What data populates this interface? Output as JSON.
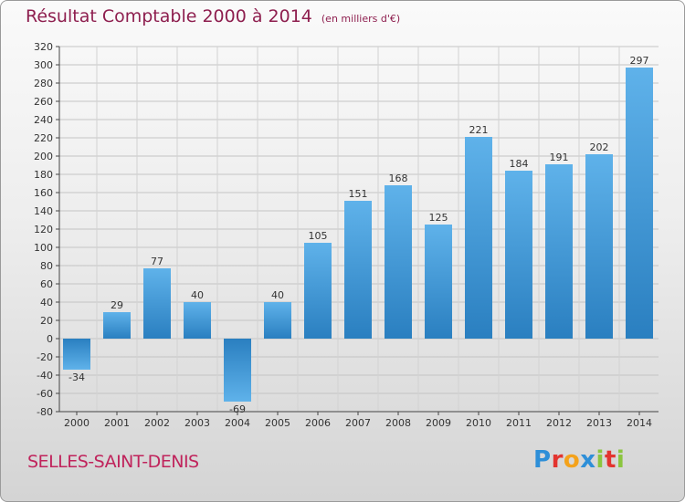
{
  "title": "Résultat Comptable 2000 à 2014",
  "subtitle": "(en milliers d'€)",
  "place": "SELLES-SAINT-DENIS",
  "brand": {
    "letters": [
      "P",
      "r",
      "o",
      "x",
      "i",
      "t",
      "i"
    ],
    "colors": [
      "#2e8fd8",
      "#e3342f",
      "#f4a21b",
      "#2e8fd8",
      "#8bc53f",
      "#e3342f",
      "#8bc53f"
    ]
  },
  "colors": {
    "bar_top": "#5fb2ea",
    "bar_bottom": "#2a7fc0",
    "title": "#8e1f4f",
    "place": "#c0245c"
  },
  "chart_data": {
    "type": "bar",
    "title": "Résultat Comptable 2000 à 2014",
    "categories": [
      "2000",
      "2001",
      "2002",
      "2003",
      "2004",
      "2005",
      "2006",
      "2007",
      "2008",
      "2009",
      "2010",
      "2011",
      "2012",
      "2013",
      "2014"
    ],
    "values": [
      -34,
      29,
      77,
      40,
      -69,
      40,
      105,
      151,
      168,
      125,
      221,
      184,
      191,
      202,
      297
    ],
    "yticks": [
      -80,
      -60,
      -40,
      -20,
      0,
      20,
      40,
      60,
      80,
      100,
      120,
      140,
      160,
      180,
      200,
      220,
      240,
      260,
      280,
      300,
      320
    ],
    "ylim": [
      -80,
      320
    ],
    "grid": true,
    "legend": "none"
  }
}
